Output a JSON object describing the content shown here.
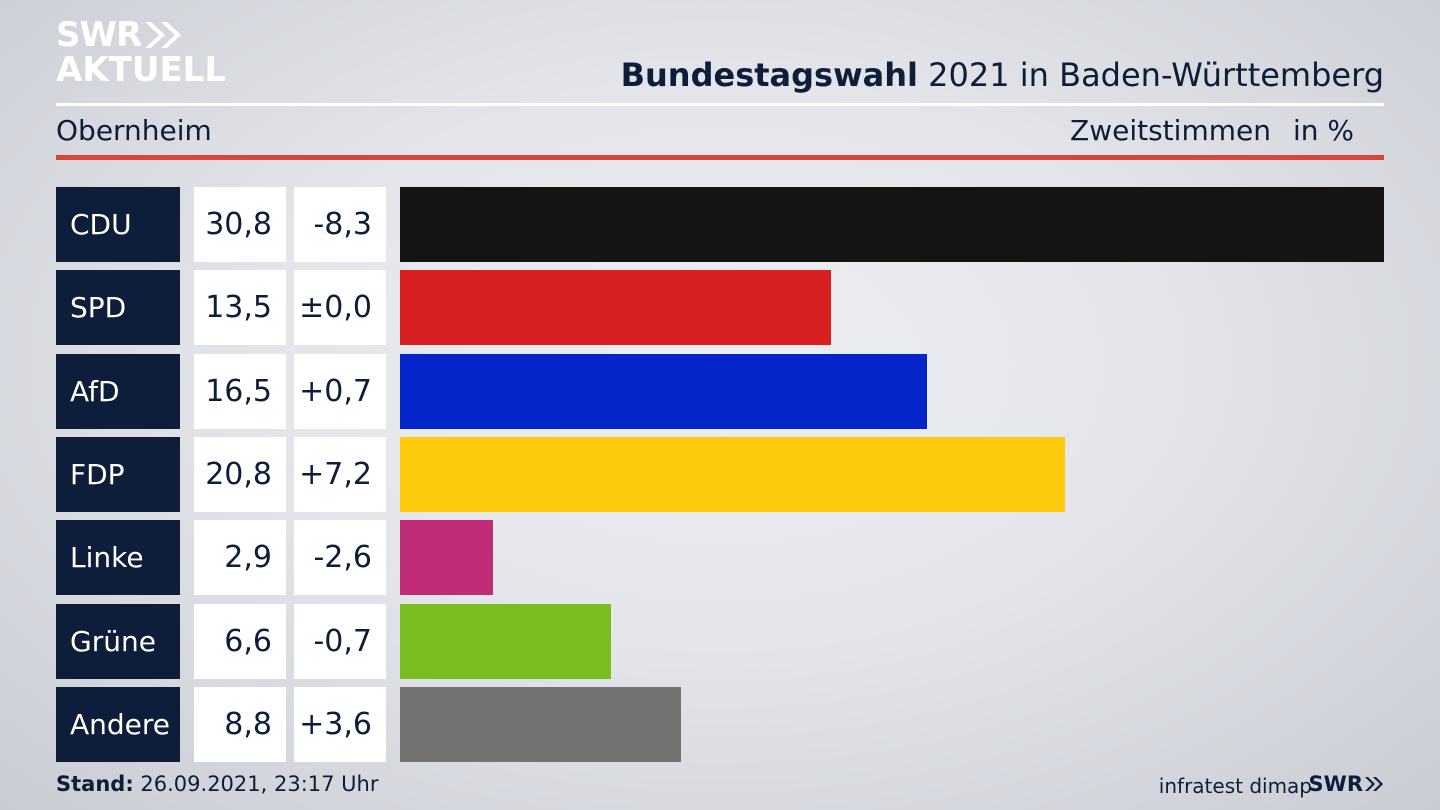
{
  "header": {
    "logo_line1": "SWR",
    "logo_line2": "AKTUELL",
    "title_bold": "Bundestagswahl",
    "title_rest": " 2021 in Baden-Württemberg",
    "place": "Obernheim",
    "vote_type": "Zweitstimmen",
    "unit": "in %"
  },
  "colors": {
    "accent_red": "#d8453a",
    "label_bg": "#0e1d3a"
  },
  "chart_data": {
    "type": "bar",
    "orientation": "horizontal",
    "categories": [
      "CDU",
      "SPD",
      "AfD",
      "FDP",
      "Linke",
      "Grüne",
      "Andere"
    ],
    "values": [
      30.8,
      13.5,
      16.5,
      20.8,
      2.9,
      6.6,
      8.8
    ],
    "value_labels": [
      "30,8",
      "13,5",
      "16,5",
      "20,8",
      "2,9",
      "6,6",
      "8,8"
    ],
    "changes": [
      -8.3,
      0.0,
      0.7,
      7.2,
      -2.6,
      -0.7,
      3.6
    ],
    "change_labels": [
      "-8,3",
      "±0,0",
      "+0,7",
      "+7,2",
      "-2,6",
      "-0,7",
      "+3,6"
    ],
    "colors": [
      "#141414",
      "#d81f22",
      "#0325c9",
      "#fdcb0c",
      "#c12c78",
      "#7abd1e",
      "#737373"
    ],
    "xlim": [
      0,
      30.8
    ]
  },
  "footer": {
    "stand_label": "Stand:",
    "stand_value": " 26.09.2021, 23:17 Uhr",
    "source": "infratest dimap",
    "brand": "SWR"
  }
}
